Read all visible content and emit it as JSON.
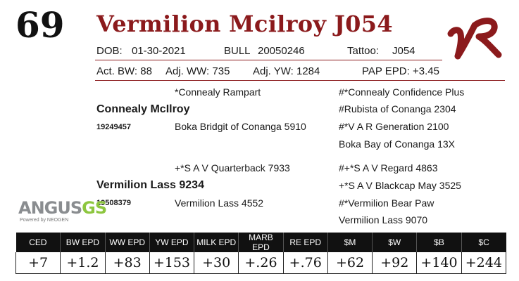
{
  "lot_number": "69",
  "animal_name": "Vermilion Mcilroy J054",
  "brand_logo_text": "VR",
  "info_line": {
    "dob_label": "DOB:",
    "dob_value": "01-30-2021",
    "sex_label": "BULL",
    "reg_number": "20050246",
    "tattoo_label": "Tattoo:",
    "tattoo_value": "J054"
  },
  "performance": {
    "act_bw": "Act. BW: 88",
    "adj_ww": "Adj. WW: 735",
    "adj_yw": "Adj. YW: 1284",
    "pap_epd": "PAP EPD: +3.45"
  },
  "pedigree": {
    "sire_sire": "*Connealy Rampart",
    "sire_sire_sire": "#*Connealy Confidence Plus",
    "sire": "Connealy McIlroy",
    "sire_sire_dam": "#Rubista of Conanga 2304",
    "sire_reg": "19249457",
    "sire_dam": "Boka Bridgit of Conanga 5910",
    "sire_dam_sire": "#*V A R Generation 2100",
    "sire_dam_dam": "Boka Bay of Conanga 13X",
    "dam_sire": "+*S A V Quarterback 7933",
    "dam_sire_sire": "#+*S A V Regard 4863",
    "dam": "Vermilion Lass 9234",
    "dam_sire_dam": "+*S A V Blackcap May 3525",
    "dam_reg": "19508379",
    "dam_dam": "Vermilion Lass 4552",
    "dam_dam_sire": "#*Vermilion Bear Paw",
    "dam_dam_dam": "Vermilion Lass 9070"
  },
  "angus_logo": {
    "main": "ANGUS",
    "gs": "GS",
    "sub": "Powered by NEOGEN"
  },
  "epd_table": {
    "headers": [
      "CED",
      "BW EPD",
      "WW EPD",
      "YW EPD",
      "MILK EPD",
      "MARB EPD",
      "RE EPD",
      "$M",
      "$W",
      "$B",
      "$C"
    ],
    "values": [
      "+7",
      "+1.2",
      "+83",
      "+153",
      "+30",
      "+.26",
      "+.76",
      "+62",
      "+92",
      "+140",
      "+244"
    ]
  },
  "colors": {
    "accent": "#8b1a1c",
    "table_header_bg": "#111111",
    "angus_grey": "#8a8d90",
    "angus_green": "#8dc63f"
  }
}
